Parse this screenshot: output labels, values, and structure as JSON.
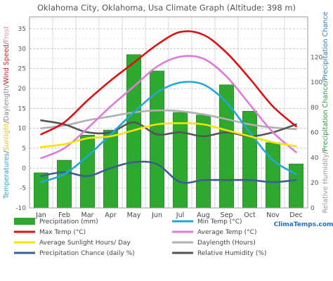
{
  "chart_data": {
    "type": "bar+line",
    "title": "Oklahoma City, Oklahoma, Usa Climate Graph (Altitude: 398 m)",
    "categories": [
      "Jan",
      "Feb",
      "Mar",
      "Apr",
      "May",
      "Jun",
      "Jul",
      "Aug",
      "Sep",
      "Oct",
      "Nov",
      "Dec"
    ],
    "left_axis": {
      "ylim": [
        -10,
        38
      ],
      "ticks": [
        -10,
        -5,
        0,
        5,
        10,
        15,
        20,
        25,
        30,
        35
      ],
      "label_parts": [
        {
          "text": "Temperatures",
          "color": "#2aa7d8"
        },
        {
          "text": "/",
          "color": "#666666"
        },
        {
          "text": "Sunlight",
          "color": "#e8c800"
        },
        {
          "text": "/",
          "color": "#666666"
        },
        {
          "text": "Daylength",
          "color": "#888888"
        },
        {
          "text": "/",
          "color": "#666666"
        },
        {
          "text": "Wind Speed",
          "color": "#d02020"
        },
        {
          "text": "/",
          "color": "#666666"
        },
        {
          "text": "Frost",
          "color": "#e090b0"
        }
      ]
    },
    "right_axis": {
      "ylim": [
        0,
        152
      ],
      "ticks": [
        0,
        20,
        40,
        60,
        80,
        100,
        120
      ],
      "label_parts": [
        {
          "text": "Relative Humidity",
          "color": "#999999"
        },
        {
          "text": "/",
          "color": "#666666"
        },
        {
          "text": "Precipitation Chance",
          "color": "#2a9d3a"
        },
        {
          "text": "/",
          "color": "#666666"
        },
        {
          "text": "Precipitation Chance",
          "color": "#2a7fc0"
        }
      ]
    },
    "bars": {
      "name": "Precipitation (mm)",
      "color": "#2ea82e",
      "values": [
        28,
        38,
        58,
        62,
        122,
        109,
        76,
        74,
        98,
        77,
        52,
        35
      ]
    },
    "series": [
      {
        "name": "Max Temp (°C)",
        "color": "#dd1111",
        "values": [
          8.5,
          11.5,
          17,
          22,
          26.5,
          31,
          34.2,
          33.5,
          29,
          22.5,
          15.5,
          10.5
        ]
      },
      {
        "name": "Min Temp (°C)",
        "color": "#22a8d8",
        "values": [
          -3.5,
          -1.5,
          3,
          8.5,
          14,
          19,
          21.5,
          21,
          16.5,
          9,
          2,
          -1.5
        ]
      },
      {
        "name": "Average Temp (°C)",
        "color": "#e07ad8",
        "values": [
          2.5,
          5,
          10,
          15.5,
          20.5,
          25.5,
          28,
          27.5,
          23,
          16,
          9,
          4
        ]
      },
      {
        "name": "Average Sunlight Hours/ Day",
        "color": "#f2e600",
        "values": [
          5.3,
          6,
          7.5,
          8,
          9.5,
          11,
          11.3,
          11,
          9.5,
          8,
          6.5,
          5.5
        ]
      },
      {
        "name": "Daylength (Hours)",
        "color": "#b0b0b0",
        "values": [
          10,
          10.7,
          12,
          13,
          14,
          14.5,
          14.3,
          13.5,
          12.3,
          11,
          10.2,
          9.8
        ]
      },
      {
        "name": "Precipitation Chance (daily %)",
        "color": "#3a5f8c",
        "values": [
          -2,
          -1,
          -2,
          0,
          1.5,
          1,
          -3.5,
          -3,
          -3,
          -3,
          -3.5,
          -3
        ]
      },
      {
        "name": "Relative Humidity (%)",
        "color": "#555555",
        "values": [
          12,
          11,
          9,
          9,
          11.5,
          8.5,
          9,
          8,
          9,
          8,
          9,
          11
        ]
      }
    ],
    "legend": [
      {
        "label": "Precipitation (mm)",
        "color": "#2ea82e",
        "kind": "box"
      },
      {
        "label": "Min Temp (°C)",
        "color": "#22a8d8",
        "kind": "line"
      },
      {
        "label": "Max Temp (°C)",
        "color": "#dd1111",
        "kind": "line"
      },
      {
        "label": "Average Temp (°C)",
        "color": "#e07ad8",
        "kind": "line"
      },
      {
        "label": "Average Sunlight Hours/ Day",
        "color": "#f2e600",
        "kind": "line"
      },
      {
        "label": "Daylength (Hours)",
        "color": "#b0b0b0",
        "kind": "line"
      },
      {
        "label": "Precipitation Chance (daily %)",
        "color": "#3a5f8c",
        "kind": "line"
      },
      {
        "label": "Relative Humidity (%)",
        "color": "#555555",
        "kind": "line"
      }
    ],
    "legend_placement": "bottom",
    "grid": true,
    "brand": "ClimaTemps.com"
  }
}
